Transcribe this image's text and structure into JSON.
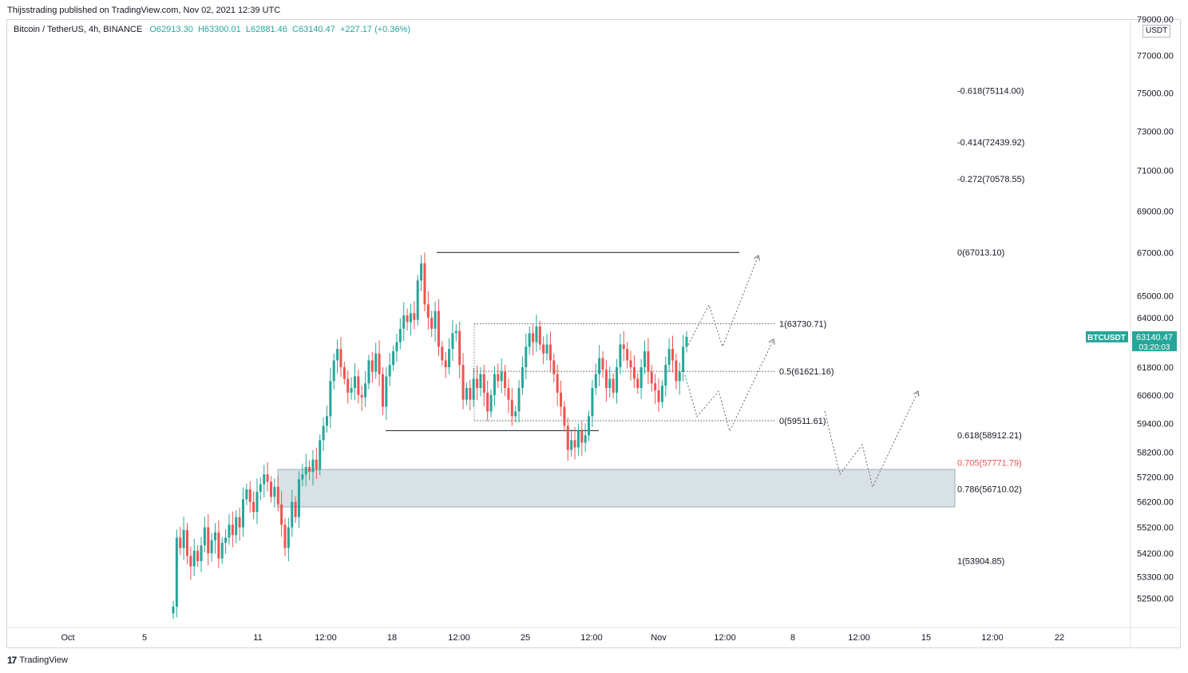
{
  "header": {
    "publisher": "Thijsstrading published on TradingView.com, Nov 02, 2021 12:39 UTC"
  },
  "symbol": {
    "name": "Bitcoin / TetherUS, 4h, BINANCE",
    "open": "O62913.30",
    "high": "H63300.01",
    "low": "L62881.46",
    "close": "C63140.47",
    "change": "+227.17 (+0.36%)"
  },
  "currency": "USDT",
  "last_price": {
    "ticker": "BTCUSDT",
    "price": "63140.47",
    "countdown": "03:20:03"
  },
  "footer": {
    "brand": "TradingView"
  },
  "colors": {
    "up": "#26a69a",
    "down": "#ef5350",
    "zone": "#d1dde2",
    "fib_highlight": "#ef5350"
  },
  "chart_data": {
    "type": "candlestick",
    "title": "Bitcoin / TetherUS, 4h, BINANCE",
    "y_scale": "log",
    "ylim": [
      51900,
      79000
    ],
    "y_ticks": [
      "79000.00",
      "77000.00",
      "75000.00",
      "73000.00",
      "71000.00",
      "69000.00",
      "67000.00",
      "65000.00",
      "64000.00",
      "61800.00",
      "60600.00",
      "59400.00",
      "58200.00",
      "57200.00",
      "56200.00",
      "55200.00",
      "54200.00",
      "53300.00",
      "52500.00"
    ],
    "x_ticks": [
      "Oct",
      "5",
      "11",
      "12:00",
      "18",
      "12:00",
      "25",
      "12:00",
      "Nov",
      "12:00",
      "8",
      "12:00",
      "15",
      "12:00",
      "22"
    ],
    "series": [
      {
        "name": "BTCUSDT",
        "closes": [
          52200,
          54800,
          54400,
          55100,
          54100,
          53700,
          54300,
          53900,
          54500,
          55200,
          54200,
          54700,
          55000,
          54000,
          54600,
          54800,
          55300,
          54900,
          55600,
          55200,
          56300,
          56700,
          56200,
          55800,
          56600,
          56900,
          57300,
          57000,
          56400,
          56800,
          56100,
          55300,
          54400,
          55200,
          56200,
          55600,
          57100,
          57300,
          57600,
          57400,
          57900,
          57500,
          58700,
          59300,
          59700,
          61200,
          62100,
          62600,
          61800,
          61300,
          60700,
          60900,
          61400,
          60600,
          60500,
          61100,
          62100,
          61600,
          62400,
          61500,
          60100,
          61400,
          61900,
          62500,
          62900,
          63500,
          64100,
          63800,
          64200,
          63900,
          65700,
          66500,
          64600,
          64000,
          63500,
          64300,
          62700,
          62100,
          61800,
          62600,
          63300,
          63400,
          61900,
          60400,
          60900,
          60400,
          61300,
          60900,
          61500,
          60700,
          59900,
          60600,
          61500,
          61200,
          61600,
          60900,
          60400,
          59700,
          59900,
          60900,
          61800,
          62700,
          63300,
          62900,
          63600,
          62800,
          62400,
          62800,
          62100,
          61500,
          60700,
          60100,
          59300,
          58300,
          58700,
          58400,
          59100,
          58600,
          58900,
          59700,
          60900,
          61500,
          62200,
          61700,
          60900,
          61300,
          60700,
          61800,
          62800,
          62600,
          62100,
          61800,
          61300,
          60900,
          61800,
          62500,
          61600,
          61100,
          60800,
          60300,
          61000,
          61900,
          62600,
          62100,
          61200,
          61600,
          62700,
          63140
        ]
      }
    ],
    "annotations": {
      "fib_right": [
        {
          "label": "-0.618(75114.00)",
          "price": 75114.0
        },
        {
          "label": "-0.414(72439.92)",
          "price": 72439.92
        },
        {
          "label": "-0.272(70578.55)",
          "price": 70578.55
        },
        {
          "label": "0(67013.10)",
          "price": 67013.1
        },
        {
          "label": "0.618(58912.21)",
          "price": 58912.21
        },
        {
          "label": "0.705(57771.79)",
          "price": 57771.79,
          "highlight": true
        },
        {
          "label": "0.786(56710.02)",
          "price": 56710.02
        },
        {
          "label": "1(53904.85)",
          "price": 53904.85
        }
      ],
      "range_fib": [
        {
          "label": "1(63730.71)",
          "price": 63730.71
        },
        {
          "label": "0.5(61621.16)",
          "price": 61621.16
        },
        {
          "label": "0(59511.61)",
          "price": 59511.61
        }
      ],
      "levels": [
        {
          "name": "resistance",
          "price": 67013.1
        },
        {
          "name": "support",
          "price": 59100
        }
      ],
      "demand_zone": {
        "top": 57500,
        "bottom": 56000
      }
    }
  }
}
